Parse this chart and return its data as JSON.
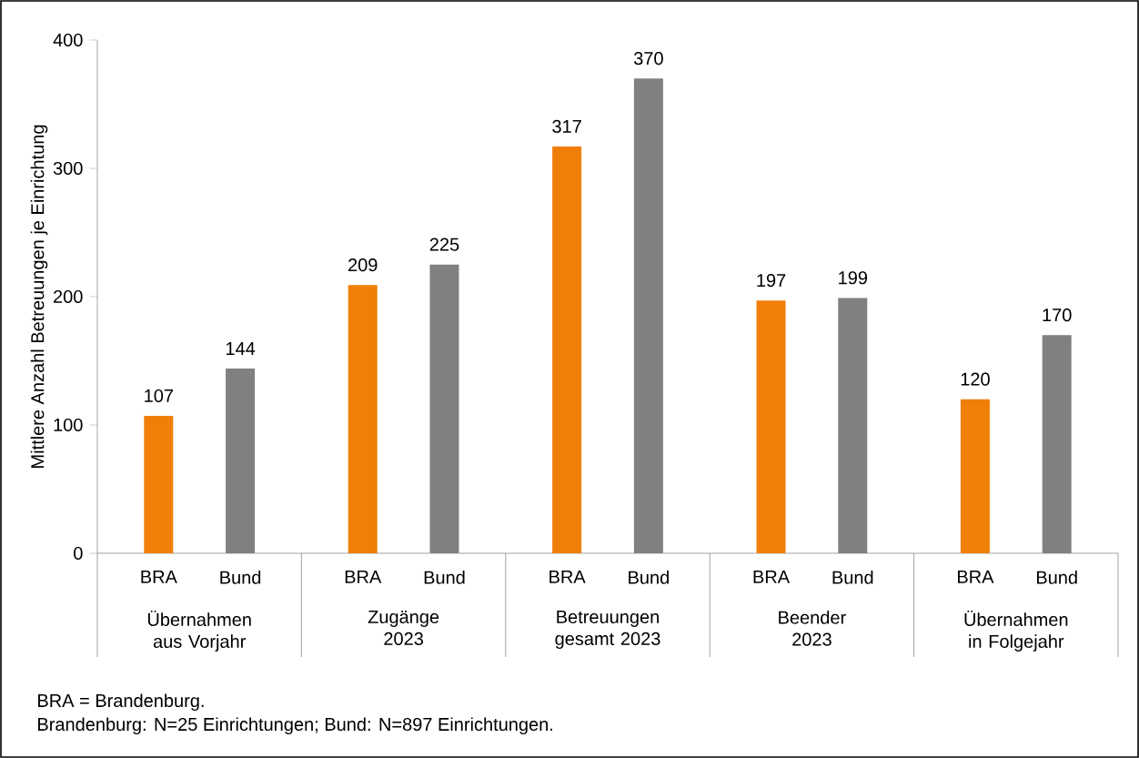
{
  "chart_data": {
    "type": "bar",
    "ylabel": "Mittlere Anzahl Betreuungen je Einrichtung",
    "categories": [
      "Übernahmen aus Vorjahr",
      "Zugänge 2023",
      "Betreuungen gesamt 2023",
      "Beender 2023",
      "Übernahmen in Folgejahr"
    ],
    "series": [
      {
        "name": "BRA",
        "color": "#f07f09",
        "values": [
          107,
          209,
          317,
          197,
          120
        ]
      },
      {
        "name": "Bund",
        "color": "#808080",
        "values": [
          144,
          225,
          370,
          199,
          170
        ]
      }
    ],
    "ylim": [
      0,
      400
    ],
    "yticks": [
      0,
      100,
      200,
      300,
      400
    ],
    "data_labels": true,
    "annotations": [
      "BRA = Brandenburg.",
      "Brandenburg: N=25 Einrichtungen; Bund: N=897 Einrichtungen."
    ]
  }
}
